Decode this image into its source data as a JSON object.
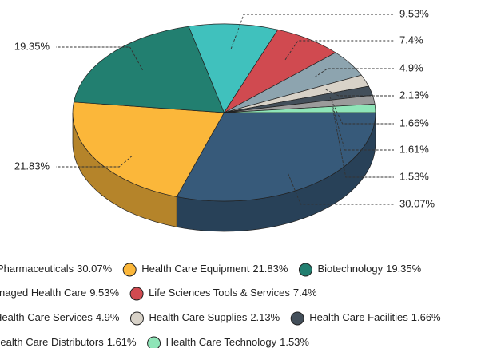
{
  "chart_data": {
    "type": "pie3d",
    "series": [
      {
        "name": "Pharmaceuticals",
        "color": "#375a7a",
        "values": [
          30.07
        ],
        "value_labels": [
          "30.07%"
        ]
      },
      {
        "name": "Health Care Equipment",
        "color": "#fbb73a",
        "values": [
          21.83
        ],
        "value_labels": [
          "21.83%"
        ]
      },
      {
        "name": "Biotechnology",
        "color": "#227f70",
        "values": [
          19.35
        ],
        "value_labels": [
          "19.35%"
        ]
      },
      {
        "name": "Managed Health Care",
        "color": "#40c1bd",
        "values": [
          9.53
        ],
        "value_labels": [
          "9.53%"
        ]
      },
      {
        "name": "Life Sciences Tools & Services",
        "color": "#d04a50",
        "values": [
          7.4
        ],
        "value_labels": [
          "7.4%"
        ]
      },
      {
        "name": "Health Care Services",
        "color": "#8da4af",
        "values": [
          4.9
        ],
        "value_labels": [
          "4.9%"
        ]
      },
      {
        "name": "Health Care Supplies",
        "color": "#d8d2c8",
        "values": [
          2.13
        ],
        "value_labels": [
          "2.13%"
        ]
      },
      {
        "name": "Health Care Facilities",
        "color": "#434f5a",
        "values": [
          1.66
        ],
        "value_labels": [
          "1.66%"
        ]
      },
      {
        "name": "Health Care Distributors",
        "color": "#9b9b9b",
        "values": [
          1.61
        ],
        "value_labels": [
          "1.61%"
        ]
      },
      {
        "name": "Health Care Technology",
        "color": "#8fe5b8",
        "values": [
          1.53
        ],
        "value_labels": [
          "1.53%"
        ]
      }
    ],
    "legend": "bottom"
  }
}
